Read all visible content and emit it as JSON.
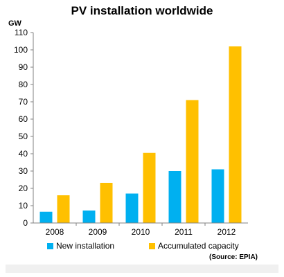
{
  "chart_data": {
    "type": "bar",
    "title": "PV installation worldwide",
    "ylabel": "GW",
    "xlabel": "",
    "categories": [
      "2008",
      "2009",
      "2010",
      "2011",
      "2012"
    ],
    "series": [
      {
        "name": "New installation",
        "color": "#00b0f0",
        "values": [
          6.5,
          7.2,
          17,
          30,
          31
        ]
      },
      {
        "name": "Accumulated capacity",
        "color": "#ffc000",
        "values": [
          16,
          23.2,
          40.5,
          71,
          102
        ]
      }
    ],
    "ylim": [
      0,
      110
    ],
    "yticks": [
      0,
      10,
      20,
      30,
      40,
      50,
      60,
      70,
      80,
      90,
      100,
      110
    ],
    "grid": false,
    "legend_position": "bottom",
    "source": "(Source: EPIA)"
  }
}
